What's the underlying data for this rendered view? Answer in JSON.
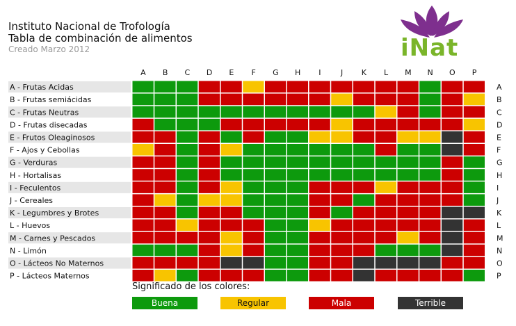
{
  "header": {
    "line1": "Instituto Nacional de Trofología",
    "line2": "Tabla de combinación de alimentos",
    "created": "Creado Marzo 2012",
    "logo_text": "iNat"
  },
  "colors": {
    "G": "#0d9a0d",
    "Y": "#f8c400",
    "R": "#cc0000",
    "D": "#333333",
    "logo_purple": "#7e2f8e",
    "logo_green": "#7ab52a"
  },
  "legend": {
    "title": "Significado de los colores:",
    "items": [
      {
        "key": "G",
        "label": "Buena"
      },
      {
        "key": "Y",
        "label": "Regular"
      },
      {
        "key": "R",
        "label": "Mala"
      },
      {
        "key": "D",
        "label": "Terrible"
      }
    ]
  },
  "chart_data": {
    "type": "heatmap",
    "columns": [
      "A",
      "B",
      "C",
      "D",
      "E",
      "F",
      "G",
      "H",
      "I",
      "J",
      "K",
      "L",
      "M",
      "N",
      "O",
      "P"
    ],
    "rows": [
      "A - Frutas Acidas",
      "B - Frutas semiácidas",
      "C - Frutas Neutras",
      "D - Frutas disecadas",
      "E - Frutos Oleaginosos",
      "F - Ajos y Cebollas",
      "G - Verduras",
      "H - Hortalisas",
      "I - Feculentos",
      "J - Cereales",
      "K - Legumbres y Brotes",
      "L - Huevos",
      "M - Carnes y Pescados",
      "N - Limón",
      "O - Lácteos No Maternos",
      "P - Lácteos Maternos"
    ],
    "row_codes": [
      "A",
      "B",
      "C",
      "D",
      "E",
      "F",
      "G",
      "H",
      "I",
      "J",
      "K",
      "L",
      "M",
      "N",
      "O",
      "P"
    ],
    "value_legend": {
      "G": "Buena",
      "Y": "Regular",
      "R": "Mala",
      "D": "Terrible"
    },
    "values": [
      [
        "G",
        "G",
        "G",
        "R",
        "R",
        "Y",
        "R",
        "R",
        "R",
        "R",
        "R",
        "R",
        "R",
        "G",
        "R",
        "R"
      ],
      [
        "G",
        "G",
        "G",
        "R",
        "R",
        "R",
        "R",
        "R",
        "R",
        "Y",
        "R",
        "R",
        "R",
        "G",
        "R",
        "Y"
      ],
      [
        "G",
        "G",
        "G",
        "G",
        "G",
        "G",
        "G",
        "G",
        "G",
        "G",
        "G",
        "Y",
        "R",
        "G",
        "R",
        "R"
      ],
      [
        "R",
        "G",
        "G",
        "G",
        "R",
        "R",
        "R",
        "R",
        "R",
        "Y",
        "R",
        "R",
        "R",
        "R",
        "R",
        "Y"
      ],
      [
        "R",
        "R",
        "G",
        "R",
        "G",
        "R",
        "G",
        "G",
        "Y",
        "Y",
        "R",
        "R",
        "Y",
        "Y",
        "D",
        "R"
      ],
      [
        "Y",
        "R",
        "G",
        "R",
        "Y",
        "G",
        "G",
        "G",
        "G",
        "G",
        "G",
        "R",
        "G",
        "G",
        "D",
        "R"
      ],
      [
        "R",
        "R",
        "G",
        "R",
        "G",
        "G",
        "G",
        "G",
        "G",
        "G",
        "G",
        "G",
        "G",
        "G",
        "R",
        "G"
      ],
      [
        "R",
        "R",
        "G",
        "R",
        "G",
        "G",
        "G",
        "G",
        "G",
        "G",
        "G",
        "G",
        "G",
        "G",
        "R",
        "G"
      ],
      [
        "R",
        "R",
        "G",
        "R",
        "Y",
        "G",
        "G",
        "G",
        "R",
        "R",
        "R",
        "Y",
        "R",
        "R",
        "R",
        "G"
      ],
      [
        "R",
        "Y",
        "G",
        "Y",
        "Y",
        "G",
        "G",
        "G",
        "R",
        "R",
        "G",
        "R",
        "R",
        "R",
        "R",
        "G"
      ],
      [
        "R",
        "R",
        "G",
        "R",
        "R",
        "G",
        "G",
        "G",
        "R",
        "G",
        "R",
        "R",
        "R",
        "R",
        "D",
        "D"
      ],
      [
        "R",
        "R",
        "Y",
        "R",
        "R",
        "R",
        "G",
        "G",
        "Y",
        "R",
        "R",
        "R",
        "R",
        "R",
        "D",
        "R"
      ],
      [
        "R",
        "R",
        "R",
        "R",
        "Y",
        "R",
        "G",
        "G",
        "R",
        "R",
        "R",
        "R",
        "Y",
        "R",
        "D",
        "R"
      ],
      [
        "G",
        "G",
        "G",
        "R",
        "Y",
        "R",
        "G",
        "G",
        "R",
        "R",
        "R",
        "G",
        "G",
        "G",
        "D",
        "R"
      ],
      [
        "R",
        "R",
        "R",
        "R",
        "D",
        "D",
        "G",
        "G",
        "R",
        "R",
        "D",
        "D",
        "D",
        "D",
        "R",
        "R"
      ],
      [
        "R",
        "Y",
        "G",
        "R",
        "R",
        "R",
        "G",
        "G",
        "R",
        "R",
        "D",
        "R",
        "R",
        "R",
        "R",
        "G"
      ]
    ]
  }
}
